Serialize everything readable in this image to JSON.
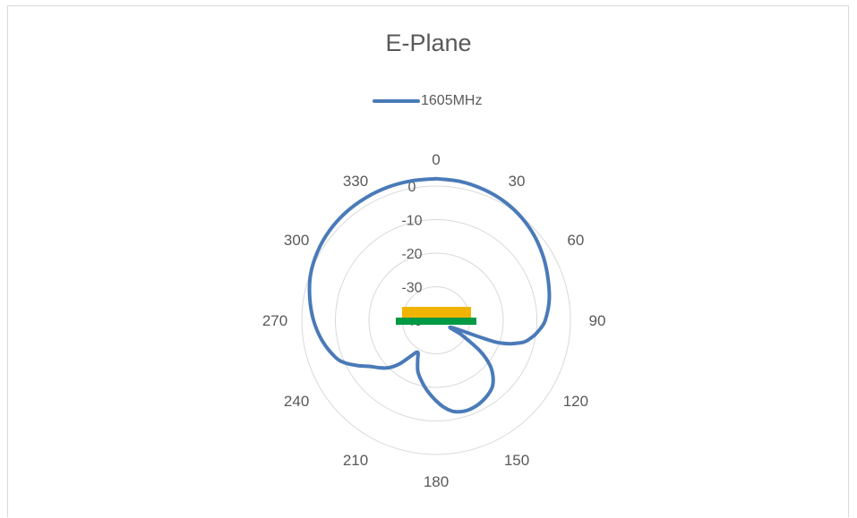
{
  "chart_data": {
    "type": "polar-line",
    "title": "E-Plane",
    "legend": {
      "placement": "top",
      "entries": [
        "1605MHz"
      ]
    },
    "angle_ticks": [
      "0",
      "30",
      "60",
      "90",
      "120",
      "150",
      "180",
      "210",
      "240",
      "270",
      "300",
      "330"
    ],
    "radial_ticks": [
      "0",
      "-10",
      "-20",
      "-30",
      "-40"
    ],
    "radial_range": [
      -40,
      0
    ],
    "grid": true,
    "series": [
      {
        "name": "1605MHz",
        "color": "#4a7ab8",
        "angles": [
          0,
          10,
          20,
          30,
          40,
          50,
          60,
          70,
          80,
          90,
          95,
          100,
          105,
          110,
          115,
          120,
          125,
          130,
          135,
          140,
          145,
          150,
          155,
          160,
          165,
          170,
          175,
          180,
          185,
          190,
          195,
          200,
          205,
          210,
          215,
          220,
          225,
          230,
          235,
          240,
          245,
          250,
          260,
          270,
          280,
          290,
          300,
          310,
          320,
          330,
          340,
          350,
          360
        ],
        "values": [
          2.2,
          2.0,
          1.5,
          0.8,
          -0.2,
          -1.5,
          -3,
          -4.5,
          -5.8,
          -7.5,
          -9,
          -11,
          -14,
          -21,
          -35,
          -31,
          -24,
          -19,
          -16,
          -14,
          -13,
          -12.3,
          -11.8,
          -11.6,
          -11.8,
          -12.5,
          -14,
          -16,
          -18,
          -20,
          -22,
          -24,
          -27,
          -29,
          -27,
          -23,
          -20,
          -18,
          -16,
          -13,
          -10,
          -8,
          -5.5,
          -3.5,
          -1.8,
          -0.2,
          0.8,
          1.5,
          1.9,
          2.1,
          2.2,
          2.2,
          2.2
        ]
      }
    ],
    "overlay": {
      "yellow_bar_color": "#f0b400",
      "green_bar_color": "#009944"
    }
  }
}
